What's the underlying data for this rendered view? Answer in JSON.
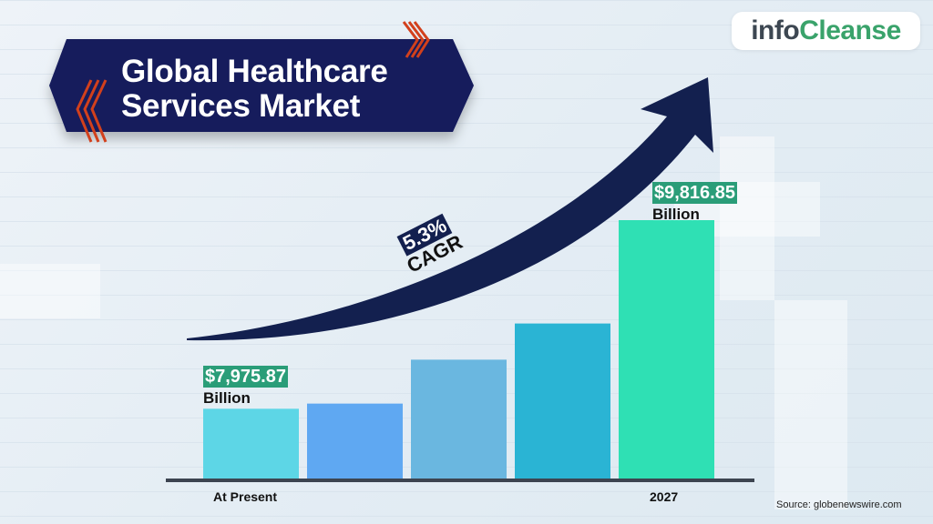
{
  "brand": {
    "logo_part1": "info",
    "logo_part2": "Cleanse",
    "colors": {
      "dark": "#3d4752",
      "green": "#3aa36b"
    }
  },
  "title": {
    "line1": "Global Healthcare",
    "line2": "Services Market"
  },
  "chart_data": {
    "type": "bar",
    "title": "Global Healthcare Services Market",
    "categories": [
      "At Present",
      "",
      "",
      "",
      "2027"
    ],
    "relative_heights_percent": [
      27,
      29,
      46,
      60,
      100
    ],
    "values_labeled": [
      {
        "category": "At Present",
        "value": 7975.87,
        "label": "$7,975.87",
        "unit": "Billion"
      },
      {
        "category": "2027",
        "value": 9816.85,
        "label": "$9,816.85",
        "unit": "Billion"
      }
    ],
    "bar_colors": [
      "#5dd6e6",
      "#5fa8f2",
      "#6ab7e0",
      "#2ab4d4",
      "#2fe0b4"
    ],
    "annotation": {
      "value": "5.3%",
      "label": "CAGR"
    },
    "xlabel": "",
    "ylabel": "",
    "grid": true,
    "legend": "none"
  },
  "source": "Source: globenewswire.com"
}
